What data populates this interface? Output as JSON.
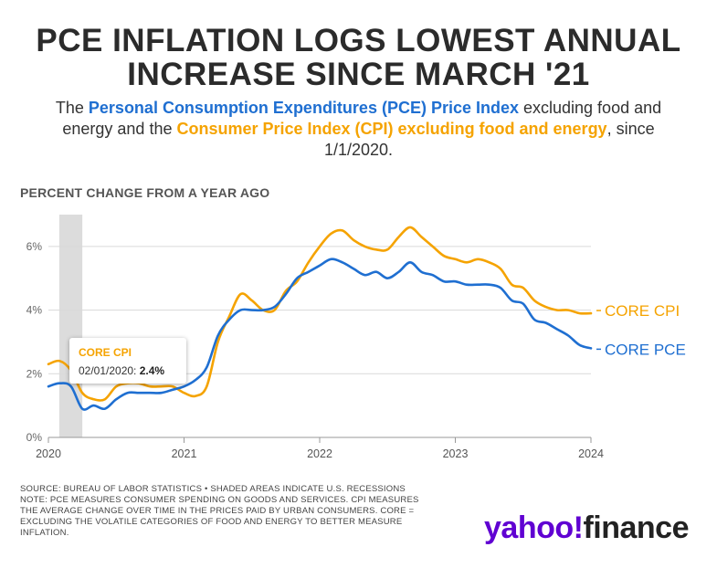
{
  "header": {
    "title_line1": "PCE INFLATION LOGS LOWEST ANNUAL",
    "title_line2": "INCREASE SINCE MARCH '21",
    "subtitle_pre": "The ",
    "subtitle_pce": "Personal Consumption Expenditures (PCE) Price Index",
    "subtitle_mid": " excluding food and energy and the ",
    "subtitle_cpi": "Consumer Price Index (CPI) excluding food and energy",
    "subtitle_post": ", since 1/1/2020."
  },
  "unit_label": "PERCENT CHANGE FROM A YEAR AGO",
  "tooltip": {
    "series": "CORE CPI",
    "date": "02/01/2020:",
    "value": "2.4%"
  },
  "footer": {
    "source": "SOURCE: BUREAU OF LABOR STATISTICS • SHADED AREAS INDICATE U.S. RECESSIONS",
    "note1": "NOTE: PCE MEASURES CONSUMER SPENDING ON GOODS AND SERVICES. CPI MEASURES",
    "note2": "THE AVERAGE CHANGE OVER TIME IN THE PRICES PAID BY URBAN CONSUMERS. CORE =",
    "note3": "EXCLUDING THE VOLATILE CATEGORIES OF FOOD AND ENERGY TO BETTER MEASURE",
    "note4": "INFLATION."
  },
  "logo": {
    "yahoo": "yahoo",
    "bang": "!",
    "finance": "finance"
  },
  "colors": {
    "cpi": "#f5a300",
    "pce": "#1f6fd1",
    "recession": "#dcdcdc",
    "grid": "#d9d9d9"
  },
  "chart_data": {
    "type": "line",
    "title": "PCE INFLATION LOGS LOWEST ANNUAL INCREASE SINCE MARCH '21",
    "ylabel": "PERCENT CHANGE FROM A YEAR AGO",
    "xlim": [
      2020.0,
      2024.0
    ],
    "ylim": [
      0,
      7
    ],
    "y_ticks": [
      0,
      2,
      4,
      6
    ],
    "y_tick_labels": [
      "0%",
      "2%",
      "4%",
      "6%"
    ],
    "x_ticks": [
      2020,
      2021,
      2022,
      2023,
      2024
    ],
    "x_tick_labels": [
      "2020",
      "2021",
      "2022",
      "2023",
      "2024"
    ],
    "recession": [
      2020.08,
      2020.25
    ],
    "series": [
      {
        "name": "CORE CPI",
        "end_label": "CORE CPI",
        "color": "#f5a300",
        "x": [
          2020.0,
          2020.083,
          2020.167,
          2020.25,
          2020.333,
          2020.417,
          2020.5,
          2020.583,
          2020.667,
          2020.75,
          2020.833,
          2020.917,
          2021.0,
          2021.083,
          2021.167,
          2021.25,
          2021.333,
          2021.417,
          2021.5,
          2021.583,
          2021.667,
          2021.75,
          2021.833,
          2021.917,
          2022.0,
          2022.083,
          2022.167,
          2022.25,
          2022.333,
          2022.417,
          2022.5,
          2022.583,
          2022.667,
          2022.75,
          2022.833,
          2022.917,
          2023.0,
          2023.083,
          2023.167,
          2023.25,
          2023.333,
          2023.417,
          2023.5,
          2023.583,
          2023.667,
          2023.75,
          2023.833,
          2023.917,
          2024.0
        ],
        "values": [
          2.3,
          2.4,
          2.1,
          1.4,
          1.2,
          1.2,
          1.6,
          1.7,
          1.7,
          1.6,
          1.6,
          1.6,
          1.4,
          1.3,
          1.6,
          3.0,
          3.8,
          4.5,
          4.3,
          4.0,
          4.0,
          4.6,
          4.9,
          5.5,
          6.0,
          6.4,
          6.5,
          6.2,
          6.0,
          5.9,
          5.9,
          6.3,
          6.6,
          6.3,
          6.0,
          5.7,
          5.6,
          5.5,
          5.6,
          5.5,
          5.3,
          4.8,
          4.7,
          4.3,
          4.1,
          4.0,
          4.0,
          3.9,
          3.9
        ]
      },
      {
        "name": "CORE PCE",
        "end_label": "CORE PCE",
        "color": "#1f6fd1",
        "x": [
          2020.0,
          2020.083,
          2020.167,
          2020.25,
          2020.333,
          2020.417,
          2020.5,
          2020.583,
          2020.667,
          2020.75,
          2020.833,
          2020.917,
          2021.0,
          2021.083,
          2021.167,
          2021.25,
          2021.333,
          2021.417,
          2021.5,
          2021.583,
          2021.667,
          2021.75,
          2021.833,
          2021.917,
          2022.0,
          2022.083,
          2022.167,
          2022.25,
          2022.333,
          2022.417,
          2022.5,
          2022.583,
          2022.667,
          2022.75,
          2022.833,
          2022.917,
          2023.0,
          2023.083,
          2023.167,
          2023.25,
          2023.333,
          2023.417,
          2023.5,
          2023.583,
          2023.667,
          2023.75,
          2023.833,
          2023.917,
          2024.0
        ],
        "values": [
          1.6,
          1.7,
          1.6,
          0.9,
          1.0,
          0.9,
          1.2,
          1.4,
          1.4,
          1.4,
          1.4,
          1.5,
          1.6,
          1.8,
          2.2,
          3.2,
          3.7,
          4.0,
          4.0,
          4.0,
          4.1,
          4.5,
          5.0,
          5.2,
          5.4,
          5.6,
          5.5,
          5.3,
          5.1,
          5.2,
          5.0,
          5.2,
          5.5,
          5.2,
          5.1,
          4.9,
          4.9,
          4.8,
          4.8,
          4.8,
          4.7,
          4.3,
          4.2,
          3.7,
          3.6,
          3.4,
          3.2,
          2.9,
          2.8
        ]
      }
    ]
  }
}
